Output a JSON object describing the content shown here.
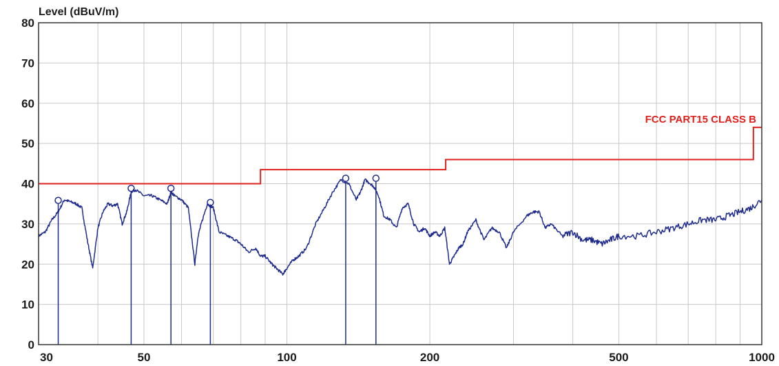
{
  "chart_data": {
    "type": "line",
    "title": "",
    "ylabel": "Level (dBuV/m)",
    "xlabel": "",
    "x_scale": "log",
    "xlim": [
      30,
      1000
    ],
    "ylim": [
      0,
      80
    ],
    "grid": true,
    "x_tick_labels": [
      "30",
      "50",
      "100",
      "200",
      "500",
      "1000"
    ],
    "y_tick_labels": [
      "0",
      "10",
      "20",
      "30",
      "40",
      "50",
      "60",
      "70",
      "80"
    ],
    "colors": {
      "trace": "#1e2a8c",
      "limit": "#e0201c",
      "grid": "#c8c8c8",
      "frame": "#333333"
    },
    "series": [
      {
        "name": "FCC PART15 CLASS B",
        "x": [
          30,
          88,
          88,
          216,
          216,
          960,
          960,
          1000
        ],
        "y": [
          40,
          40,
          43.5,
          43.5,
          46,
          46,
          54,
          54
        ]
      },
      {
        "name": "",
        "x": [
          30,
          31,
          32,
          33,
          34,
          35,
          36,
          37,
          38,
          39,
          40,
          41,
          42,
          43,
          44,
          45,
          46,
          47,
          48,
          50,
          52,
          54,
          56,
          57,
          58,
          60,
          62,
          64,
          65,
          66,
          68,
          70,
          72,
          75,
          78,
          80,
          83,
          86,
          88,
          90,
          93,
          95,
          98,
          100,
          103,
          106,
          110,
          115,
          120,
          125,
          130,
          135,
          140,
          143,
          146,
          150,
          153,
          156,
          160,
          165,
          170,
          175,
          180,
          185,
          190,
          195,
          200,
          205,
          210,
          215,
          220,
          225,
          230,
          235,
          240,
          250,
          260,
          270,
          280,
          290,
          300,
          320,
          330,
          340,
          350,
          360,
          380,
          400,
          420,
          440,
          460,
          480,
          500,
          550,
          600,
          650,
          700,
          750,
          800,
          850,
          900,
          950,
          1000
        ],
        "y": [
          27,
          28,
          31,
          33,
          36,
          35.5,
          35,
          34,
          26,
          19,
          29,
          33,
          35,
          34.5,
          35,
          30,
          33,
          38,
          38.5,
          37,
          37,
          36,
          35,
          38,
          37,
          36,
          34,
          20,
          27,
          30,
          35,
          34,
          28,
          27,
          26,
          25,
          23,
          24,
          22,
          22,
          20,
          19,
          17.5,
          19,
          21,
          22,
          24,
          30,
          34,
          38,
          41,
          40,
          36,
          38,
          41,
          40,
          39,
          37,
          32,
          31,
          29,
          34,
          35,
          30,
          28,
          29,
          27,
          28,
          27,
          29,
          20,
          22,
          24,
          25,
          28,
          31,
          26,
          29,
          28,
          24,
          28,
          32,
          33,
          33,
          29,
          30,
          27,
          28,
          26,
          26,
          25,
          26,
          27,
          27,
          28,
          29,
          30,
          31,
          31,
          32,
          33,
          34,
          36
        ]
      }
    ],
    "markers": [
      {
        "x": 33,
        "y": 35.5
      },
      {
        "x": 47,
        "y": 38.5
      },
      {
        "x": 57,
        "y": 38.5
      },
      {
        "x": 69,
        "y": 35
      },
      {
        "x": 133,
        "y": 41
      },
      {
        "x": 154,
        "y": 41
      }
    ]
  }
}
